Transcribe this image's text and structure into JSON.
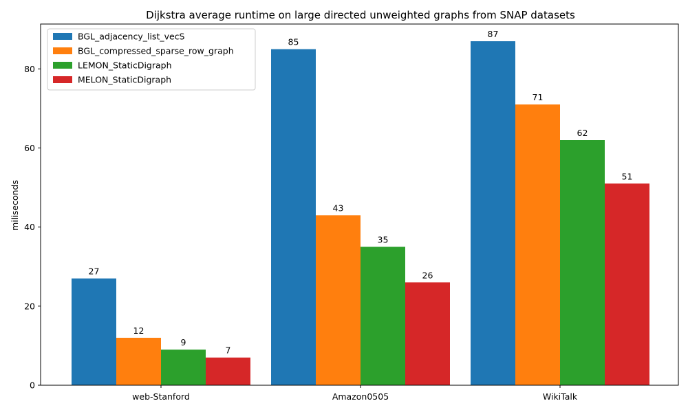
{
  "chart_data": {
    "type": "bar",
    "title": "Dijkstra average runtime on large directed unweighted graphs from SNAP datasets",
    "xlabel": "",
    "ylabel": "miliseconds",
    "categories": [
      "web-Stanford",
      "Amazon0505",
      "WikiTalk"
    ],
    "series": [
      {
        "name": "BGL_adjacency_list_vecS",
        "color": "#1f77b4",
        "values": [
          27,
          85,
          87
        ]
      },
      {
        "name": "BGL_compressed_sparse_row_graph",
        "color": "#ff7f0e",
        "values": [
          12,
          43,
          71
        ]
      },
      {
        "name": "LEMON_StaticDigraph",
        "color": "#2ca02c",
        "values": [
          9,
          35,
          62
        ]
      },
      {
        "name": "MELON_StaticDigraph",
        "color": "#d62728",
        "values": [
          7,
          26,
          51
        ]
      }
    ],
    "ylim": [
      0,
      91.35
    ],
    "yticks": [
      0,
      20,
      40,
      60,
      80
    ],
    "grid": false,
    "legend_position": "top-left",
    "data_labels": true
  }
}
